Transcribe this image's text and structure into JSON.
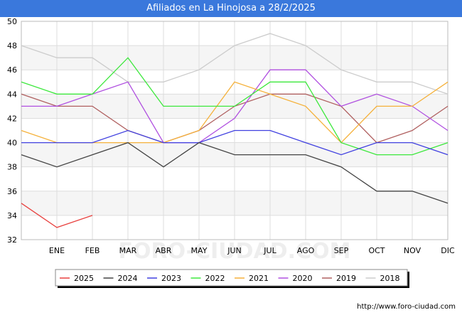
{
  "chart_data": {
    "type": "line",
    "title": "Afiliados en La Hinojosa a 28/2/2025",
    "categories": [
      "",
      "ENE",
      "FEB",
      "MAR",
      "ABR",
      "MAY",
      "JUN",
      "JUL",
      "AGO",
      "SEP",
      "OCT",
      "NOV",
      "DIC"
    ],
    "ylim": [
      32,
      50
    ],
    "yticks": [
      32,
      34,
      36,
      38,
      40,
      42,
      44,
      46,
      48,
      50
    ],
    "grid": true,
    "watermark": "FORO-CIUDAD.COM",
    "series": [
      {
        "name": "2025",
        "color": "#e8413f",
        "values": [
          35,
          33,
          34,
          null,
          null,
          null,
          null,
          null,
          null,
          null,
          null,
          null,
          null
        ]
      },
      {
        "name": "2024",
        "color": "#444444",
        "values": [
          39,
          38,
          39,
          40,
          38,
          40,
          39,
          39,
          39,
          38,
          36,
          36,
          35
        ]
      },
      {
        "name": "2023",
        "color": "#4040e0",
        "values": [
          40,
          40,
          40,
          41,
          40,
          40,
          41,
          41,
          40,
          39,
          40,
          40,
          39
        ]
      },
      {
        "name": "2022",
        "color": "#3de83d",
        "values": [
          45,
          44,
          44,
          47,
          43,
          43,
          43,
          45,
          45,
          40,
          39,
          39,
          40
        ]
      },
      {
        "name": "2021",
        "color": "#f5b13a",
        "values": [
          41,
          40,
          40,
          40,
          40,
          41,
          45,
          44,
          43,
          40,
          43,
          43,
          45
        ]
      },
      {
        "name": "2020",
        "color": "#b050e0",
        "values": [
          43,
          43,
          44,
          45,
          40,
          40,
          42,
          46,
          46,
          43,
          44,
          43,
          41
        ]
      },
      {
        "name": "2019",
        "color": "#b06060",
        "values": [
          44,
          43,
          43,
          41,
          40,
          41,
          43,
          44,
          44,
          43,
          40,
          41,
          43
        ]
      },
      {
        "name": "2018",
        "color": "#cccccc",
        "values": [
          48,
          47,
          47,
          45,
          45,
          46,
          48,
          49,
          48,
          46,
          45,
          45,
          44
        ]
      }
    ]
  },
  "source": "http://www.foro-ciudad.com"
}
